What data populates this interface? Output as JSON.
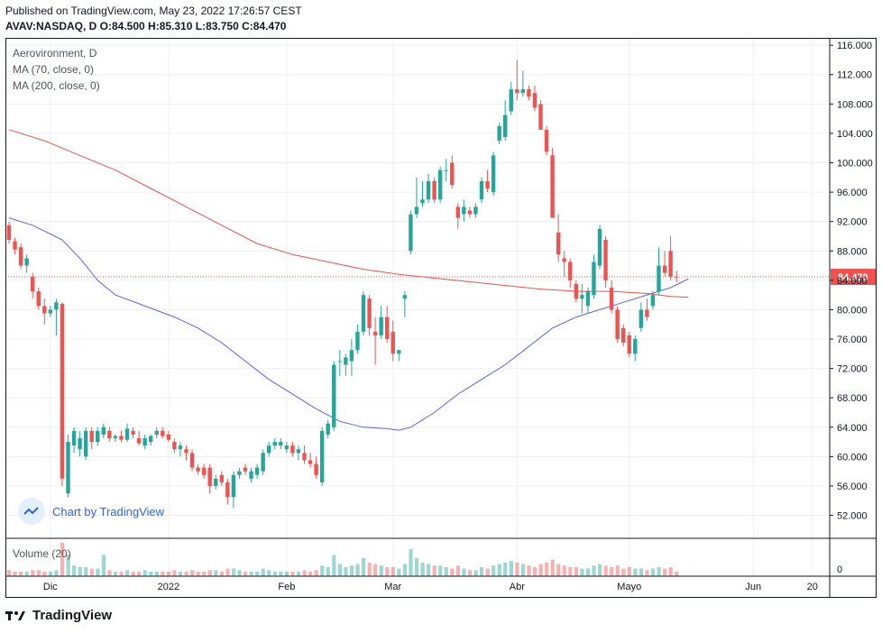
{
  "header": {
    "published": "Published on TradingView.com, May 23, 2022 17:26:57 CEST",
    "ohlc": "AVAV:NASDAQ, D O:84.500 H:85.310 L:83.750 C:84.470"
  },
  "legend": {
    "symbol": "Aerovironment, D",
    "ma70": "MA (70, close, 0)",
    "ma200": "MA (200, close, 0)"
  },
  "volume_label": "Volume (20)",
  "volume_axis_label": "0",
  "badge": "Chart by TradingView",
  "footer_logo": "TradingView",
  "colors": {
    "up": "#26a69a",
    "down": "#ef5350",
    "ma70": "#5b63e0",
    "ma200": "#e8534b",
    "last_price_bg": "#ef5350",
    "grid": "#eef0f4"
  },
  "chart_data": {
    "type": "candlestick",
    "y_range": [
      49,
      117
    ],
    "y_ticks": [
      52,
      56,
      60,
      64,
      68,
      72,
      76,
      80,
      84,
      88,
      92,
      96,
      100,
      104,
      108,
      112,
      116
    ],
    "y_tick_labels": [
      "52.000",
      "56.000",
      "60.000",
      "64.000",
      "68.000",
      "72.000",
      "76.000",
      "80.000",
      "84.000",
      "88.000",
      "92.000",
      "96.000",
      "100.000",
      "104.000",
      "108.000",
      "112.000",
      "116.000"
    ],
    "last_price": 84.47,
    "last_price_label": "84.470",
    "x_labels": [
      {
        "label": "Dic",
        "bar": 7
      },
      {
        "label": "2022",
        "bar": 27
      },
      {
        "label": "Feb",
        "bar": 47
      },
      {
        "label": "Mar",
        "bar": 65
      },
      {
        "label": "Abr",
        "bar": 86
      },
      {
        "label": "Mayo",
        "bar": 105
      },
      {
        "label": "Jun",
        "bar": 126
      },
      {
        "label": "20",
        "bar": 136
      }
    ],
    "bars": [
      {
        "o": 91.5,
        "h": 92.0,
        "l": 89.0,
        "c": 89.5,
        "v": 4
      },
      {
        "o": 89.3,
        "h": 89.8,
        "l": 87.5,
        "c": 88.2,
        "v": 3
      },
      {
        "o": 88.5,
        "h": 89.0,
        "l": 85.5,
        "c": 86.0,
        "v": 3
      },
      {
        "o": 86.0,
        "h": 87.5,
        "l": 85.0,
        "c": 87.0,
        "v": 3
      },
      {
        "o": 84.5,
        "h": 85.0,
        "l": 81.5,
        "c": 82.5,
        "v": 4
      },
      {
        "o": 82.5,
        "h": 83.0,
        "l": 80.0,
        "c": 80.5,
        "v": 4
      },
      {
        "o": 80.5,
        "h": 81.5,
        "l": 78.0,
        "c": 79.5,
        "v": 3
      },
      {
        "o": 79.5,
        "h": 80.5,
        "l": 79.0,
        "c": 80.0,
        "v": 3
      },
      {
        "o": 80.0,
        "h": 81.5,
        "l": 76.5,
        "c": 81.0,
        "v": 4
      },
      {
        "o": 80.8,
        "h": 81.0,
        "l": 56.0,
        "c": 57.0,
        "v": 22
      },
      {
        "o": 55.0,
        "h": 63.0,
        "l": 54.5,
        "c": 62.0,
        "v": 14
      },
      {
        "o": 61.5,
        "h": 64.0,
        "l": 60.5,
        "c": 63.5,
        "v": 7
      },
      {
        "o": 61.0,
        "h": 63.5,
        "l": 60.0,
        "c": 62.5,
        "v": 6
      },
      {
        "o": 60.0,
        "h": 64.0,
        "l": 59.5,
        "c": 63.5,
        "v": 6
      },
      {
        "o": 63.5,
        "h": 64.0,
        "l": 61.0,
        "c": 62.0,
        "v": 5
      },
      {
        "o": 62.0,
        "h": 64.0,
        "l": 61.5,
        "c": 63.5,
        "v": 5
      },
      {
        "o": 63.0,
        "h": 64.5,
        "l": 62.5,
        "c": 64.0,
        "v": 14
      },
      {
        "o": 63.5,
        "h": 64.0,
        "l": 62.0,
        "c": 62.5,
        "v": 4
      },
      {
        "o": 62.5,
        "h": 63.0,
        "l": 62.0,
        "c": 62.8,
        "v": 3
      },
      {
        "o": 62.8,
        "h": 63.5,
        "l": 62.0,
        "c": 62.3,
        "v": 3
      },
      {
        "o": 62.3,
        "h": 64.5,
        "l": 62.0,
        "c": 63.8,
        "v": 4
      },
      {
        "o": 63.5,
        "h": 64.0,
        "l": 62.5,
        "c": 63.0,
        "v": 3
      },
      {
        "o": 62.5,
        "h": 63.5,
        "l": 61.5,
        "c": 61.8,
        "v": 3
      },
      {
        "o": 61.5,
        "h": 63.0,
        "l": 61.0,
        "c": 62.5,
        "v": 4
      },
      {
        "o": 62.0,
        "h": 63.0,
        "l": 61.5,
        "c": 62.8,
        "v": 3
      },
      {
        "o": 63.0,
        "h": 64.0,
        "l": 62.5,
        "c": 63.5,
        "v": 3
      },
      {
        "o": 63.5,
        "h": 64.0,
        "l": 62.5,
        "c": 62.8,
        "v": 3
      },
      {
        "o": 63.0,
        "h": 63.5,
        "l": 62.0,
        "c": 62.3,
        "v": 3
      },
      {
        "o": 62.0,
        "h": 62.5,
        "l": 60.5,
        "c": 61.0,
        "v": 4
      },
      {
        "o": 61.0,
        "h": 62.0,
        "l": 60.0,
        "c": 61.5,
        "v": 3
      },
      {
        "o": 61.0,
        "h": 61.5,
        "l": 59.5,
        "c": 60.5,
        "v": 3
      },
      {
        "o": 60.5,
        "h": 61.0,
        "l": 58.0,
        "c": 58.5,
        "v": 4
      },
      {
        "o": 58.5,
        "h": 59.0,
        "l": 57.5,
        "c": 58.0,
        "v": 3
      },
      {
        "o": 58.5,
        "h": 59.0,
        "l": 57.0,
        "c": 57.5,
        "v": 3
      },
      {
        "o": 58.5,
        "h": 59.0,
        "l": 55.0,
        "c": 56.0,
        "v": 4
      },
      {
        "o": 56.0,
        "h": 57.5,
        "l": 55.5,
        "c": 57.0,
        "v": 4
      },
      {
        "o": 57.5,
        "h": 58.0,
        "l": 56.0,
        "c": 56.5,
        "v": 3
      },
      {
        "o": 56.5,
        "h": 57.0,
        "l": 53.5,
        "c": 54.5,
        "v": 5
      },
      {
        "o": 54.5,
        "h": 58.0,
        "l": 53.0,
        "c": 57.5,
        "v": 5
      },
      {
        "o": 57.5,
        "h": 58.5,
        "l": 57.0,
        "c": 58.0,
        "v": 4
      },
      {
        "o": 58.5,
        "h": 59.0,
        "l": 57.5,
        "c": 58.0,
        "v": 3
      },
      {
        "o": 57.0,
        "h": 58.5,
        "l": 56.5,
        "c": 58.0,
        "v": 3
      },
      {
        "o": 57.5,
        "h": 59.0,
        "l": 57.0,
        "c": 58.5,
        "v": 3
      },
      {
        "o": 58.0,
        "h": 61.0,
        "l": 57.5,
        "c": 60.5,
        "v": 5
      },
      {
        "o": 60.5,
        "h": 62.0,
        "l": 60.0,
        "c": 61.5,
        "v": 4
      },
      {
        "o": 61.5,
        "h": 62.5,
        "l": 61.0,
        "c": 62.0,
        "v": 3
      },
      {
        "o": 61.5,
        "h": 62.5,
        "l": 61.0,
        "c": 62.0,
        "v": 3
      },
      {
        "o": 61.0,
        "h": 62.0,
        "l": 60.5,
        "c": 61.5,
        "v": 3
      },
      {
        "o": 61.5,
        "h": 62.0,
        "l": 60.0,
        "c": 60.5,
        "v": 3
      },
      {
        "o": 60.5,
        "h": 61.5,
        "l": 59.5,
        "c": 61.0,
        "v": 3
      },
      {
        "o": 60.5,
        "h": 61.5,
        "l": 59.0,
        "c": 59.5,
        "v": 4
      },
      {
        "o": 59.5,
        "h": 60.5,
        "l": 58.5,
        "c": 59.0,
        "v": 3
      },
      {
        "o": 59.0,
        "h": 60.0,
        "l": 57.0,
        "c": 57.5,
        "v": 4
      },
      {
        "o": 56.5,
        "h": 64.0,
        "l": 56.0,
        "c": 63.5,
        "v": 7
      },
      {
        "o": 63.0,
        "h": 65.0,
        "l": 62.5,
        "c": 64.5,
        "v": 6
      },
      {
        "o": 64.0,
        "h": 73.0,
        "l": 63.5,
        "c": 72.5,
        "v": 14
      },
      {
        "o": 73.0,
        "h": 74.5,
        "l": 71.0,
        "c": 73.0,
        "v": 8
      },
      {
        "o": 72.5,
        "h": 74.0,
        "l": 71.0,
        "c": 73.5,
        "v": 6
      },
      {
        "o": 73.0,
        "h": 76.0,
        "l": 71.0,
        "c": 74.5,
        "v": 7
      },
      {
        "o": 74.5,
        "h": 78.0,
        "l": 74.0,
        "c": 77.0,
        "v": 8
      },
      {
        "o": 77.0,
        "h": 82.5,
        "l": 76.5,
        "c": 82.0,
        "v": 12
      },
      {
        "o": 81.5,
        "h": 82.0,
        "l": 76.5,
        "c": 77.5,
        "v": 9
      },
      {
        "o": 77.0,
        "h": 79.0,
        "l": 72.5,
        "c": 76.5,
        "v": 8
      },
      {
        "o": 76.5,
        "h": 80.5,
        "l": 76.0,
        "c": 79.0,
        "v": 7
      },
      {
        "o": 79.0,
        "h": 80.5,
        "l": 75.5,
        "c": 76.0,
        "v": 6
      },
      {
        "o": 77.0,
        "h": 78.5,
        "l": 73.0,
        "c": 74.0,
        "v": 6
      },
      {
        "o": 74.0,
        "h": 74.5,
        "l": 73.0,
        "c": 74.5,
        "v": 5
      },
      {
        "o": 81.5,
        "h": 82.5,
        "l": 79.0,
        "c": 82.0,
        "v": 8
      },
      {
        "o": 88.0,
        "h": 93.5,
        "l": 87.5,
        "c": 93.0,
        "v": 18
      },
      {
        "o": 93.0,
        "h": 98.0,
        "l": 92.5,
        "c": 94.0,
        "v": 12
      },
      {
        "o": 94.5,
        "h": 97.5,
        "l": 94.0,
        "c": 95.0,
        "v": 9
      },
      {
        "o": 95.0,
        "h": 98.5,
        "l": 94.5,
        "c": 97.5,
        "v": 8
      },
      {
        "o": 97.5,
        "h": 98.0,
        "l": 94.5,
        "c": 95.0,
        "v": 7
      },
      {
        "o": 95.0,
        "h": 99.5,
        "l": 94.5,
        "c": 99.0,
        "v": 7
      },
      {
        "o": 99.0,
        "h": 100.5,
        "l": 97.5,
        "c": 99.0,
        "v": 6
      },
      {
        "o": 100.0,
        "h": 101.0,
        "l": 96.5,
        "c": 97.0,
        "v": 5
      },
      {
        "o": 94.0,
        "h": 94.5,
        "l": 91.0,
        "c": 92.5,
        "v": 7
      },
      {
        "o": 93.0,
        "h": 95.0,
        "l": 92.0,
        "c": 94.0,
        "v": 5
      },
      {
        "o": 93.5,
        "h": 94.0,
        "l": 92.5,
        "c": 93.0,
        "v": 4
      },
      {
        "o": 93.0,
        "h": 94.5,
        "l": 92.5,
        "c": 94.0,
        "v": 4
      },
      {
        "o": 95.0,
        "h": 98.0,
        "l": 94.5,
        "c": 97.5,
        "v": 6
      },
      {
        "o": 97.5,
        "h": 99.0,
        "l": 96.0,
        "c": 96.5,
        "v": 5
      },
      {
        "o": 96.0,
        "h": 101.5,
        "l": 95.5,
        "c": 101.0,
        "v": 7
      },
      {
        "o": 103.0,
        "h": 105.5,
        "l": 102.5,
        "c": 105.0,
        "v": 8
      },
      {
        "o": 103.5,
        "h": 108.5,
        "l": 103.0,
        "c": 106.5,
        "v": 9
      },
      {
        "o": 107.0,
        "h": 111.0,
        "l": 106.5,
        "c": 110.0,
        "v": 10
      },
      {
        "o": 110.0,
        "h": 114.0,
        "l": 108.5,
        "c": 109.5,
        "v": 9
      },
      {
        "o": 109.5,
        "h": 112.5,
        "l": 109.0,
        "c": 110.0,
        "v": 8
      },
      {
        "o": 110.0,
        "h": 110.5,
        "l": 108.5,
        "c": 109.0,
        "v": 7
      },
      {
        "o": 109.5,
        "h": 110.5,
        "l": 107.0,
        "c": 107.5,
        "v": 6
      },
      {
        "o": 108.0,
        "h": 108.5,
        "l": 104.5,
        "c": 104.5,
        "v": 8
      },
      {
        "o": 104.5,
        "h": 105.0,
        "l": 101.0,
        "c": 101.5,
        "v": 9
      },
      {
        "o": 101.0,
        "h": 102.0,
        "l": 92.5,
        "c": 92.5,
        "v": 11
      },
      {
        "o": 90.5,
        "h": 93.0,
        "l": 86.5,
        "c": 87.5,
        "v": 8
      },
      {
        "o": 87.0,
        "h": 88.0,
        "l": 84.5,
        "c": 86.5,
        "v": 7
      },
      {
        "o": 86.5,
        "h": 87.0,
        "l": 83.0,
        "c": 84.0,
        "v": 6
      },
      {
        "o": 83.5,
        "h": 84.0,
        "l": 81.0,
        "c": 81.5,
        "v": 6
      },
      {
        "o": 81.5,
        "h": 83.5,
        "l": 79.5,
        "c": 82.0,
        "v": 5
      },
      {
        "o": 80.5,
        "h": 83.0,
        "l": 79.5,
        "c": 82.5,
        "v": 5
      },
      {
        "o": 82.0,
        "h": 87.5,
        "l": 81.5,
        "c": 86.5,
        "v": 7
      },
      {
        "o": 86.0,
        "h": 91.5,
        "l": 85.5,
        "c": 91.0,
        "v": 8
      },
      {
        "o": 89.5,
        "h": 90.0,
        "l": 83.0,
        "c": 84.0,
        "v": 7
      },
      {
        "o": 83.0,
        "h": 84.0,
        "l": 79.5,
        "c": 80.0,
        "v": 6
      },
      {
        "o": 80.0,
        "h": 80.5,
        "l": 75.5,
        "c": 76.0,
        "v": 7
      },
      {
        "o": 77.5,
        "h": 78.0,
        "l": 75.0,
        "c": 75.5,
        "v": 5
      },
      {
        "o": 76.5,
        "h": 77.0,
        "l": 73.5,
        "c": 74.0,
        "v": 6
      },
      {
        "o": 74.0,
        "h": 76.5,
        "l": 73.0,
        "c": 76.0,
        "v": 5
      },
      {
        "o": 77.5,
        "h": 81.0,
        "l": 77.0,
        "c": 80.0,
        "v": 5
      },
      {
        "o": 80.0,
        "h": 81.5,
        "l": 78.5,
        "c": 79.0,
        "v": 4
      },
      {
        "o": 80.5,
        "h": 82.5,
        "l": 80.0,
        "c": 82.0,
        "v": 5
      },
      {
        "o": 82.5,
        "h": 88.5,
        "l": 82.0,
        "c": 86.0,
        "v": 6
      },
      {
        "o": 86.0,
        "h": 88.0,
        "l": 84.5,
        "c": 85.0,
        "v": 5
      },
      {
        "o": 88.0,
        "h": 90.0,
        "l": 84.0,
        "c": 84.5,
        "v": 6
      },
      {
        "o": 84.5,
        "h": 85.3,
        "l": 83.75,
        "c": 84.47,
        "v": 3
      }
    ],
    "ma70": [
      [
        0,
        92.5
      ],
      [
        4,
        91.5
      ],
      [
        9,
        89.5
      ],
      [
        12,
        87.0
      ],
      [
        15,
        84.0
      ],
      [
        18,
        82.0
      ],
      [
        22,
        80.8
      ],
      [
        28,
        79.0
      ],
      [
        32,
        77.5
      ],
      [
        36,
        75.5
      ],
      [
        40,
        73.0
      ],
      [
        44,
        70.5
      ],
      [
        48,
        68.5
      ],
      [
        52,
        66.5
      ],
      [
        56,
        64.8
      ],
      [
        60,
        64.0
      ],
      [
        64,
        63.8
      ],
      [
        66,
        63.6
      ],
      [
        68,
        64.0
      ],
      [
        72,
        66.0
      ],
      [
        76,
        68.5
      ],
      [
        80,
        70.5
      ],
      [
        84,
        72.5
      ],
      [
        88,
        75.0
      ],
      [
        92,
        77.5
      ],
      [
        96,
        79.0
      ],
      [
        100,
        80.0
      ],
      [
        104,
        81.0
      ],
      [
        108,
        82.0
      ],
      [
        112,
        83.0
      ],
      [
        114,
        83.8
      ],
      [
        115,
        84.2
      ]
    ],
    "ma200": [
      [
        0,
        104.5
      ],
      [
        6,
        103.0
      ],
      [
        12,
        101.0
      ],
      [
        18,
        99.0
      ],
      [
        24,
        96.5
      ],
      [
        30,
        94.0
      ],
      [
        36,
        91.5
      ],
      [
        42,
        89.0
      ],
      [
        48,
        87.5
      ],
      [
        54,
        86.5
      ],
      [
        60,
        85.5
      ],
      [
        66,
        84.8
      ],
      [
        72,
        84.3
      ],
      [
        78,
        83.8
      ],
      [
        84,
        83.3
      ],
      [
        90,
        82.8
      ],
      [
        96,
        82.5
      ],
      [
        102,
        82.5
      ],
      [
        108,
        82.2
      ],
      [
        112,
        81.8
      ],
      [
        115,
        81.7
      ]
    ]
  }
}
